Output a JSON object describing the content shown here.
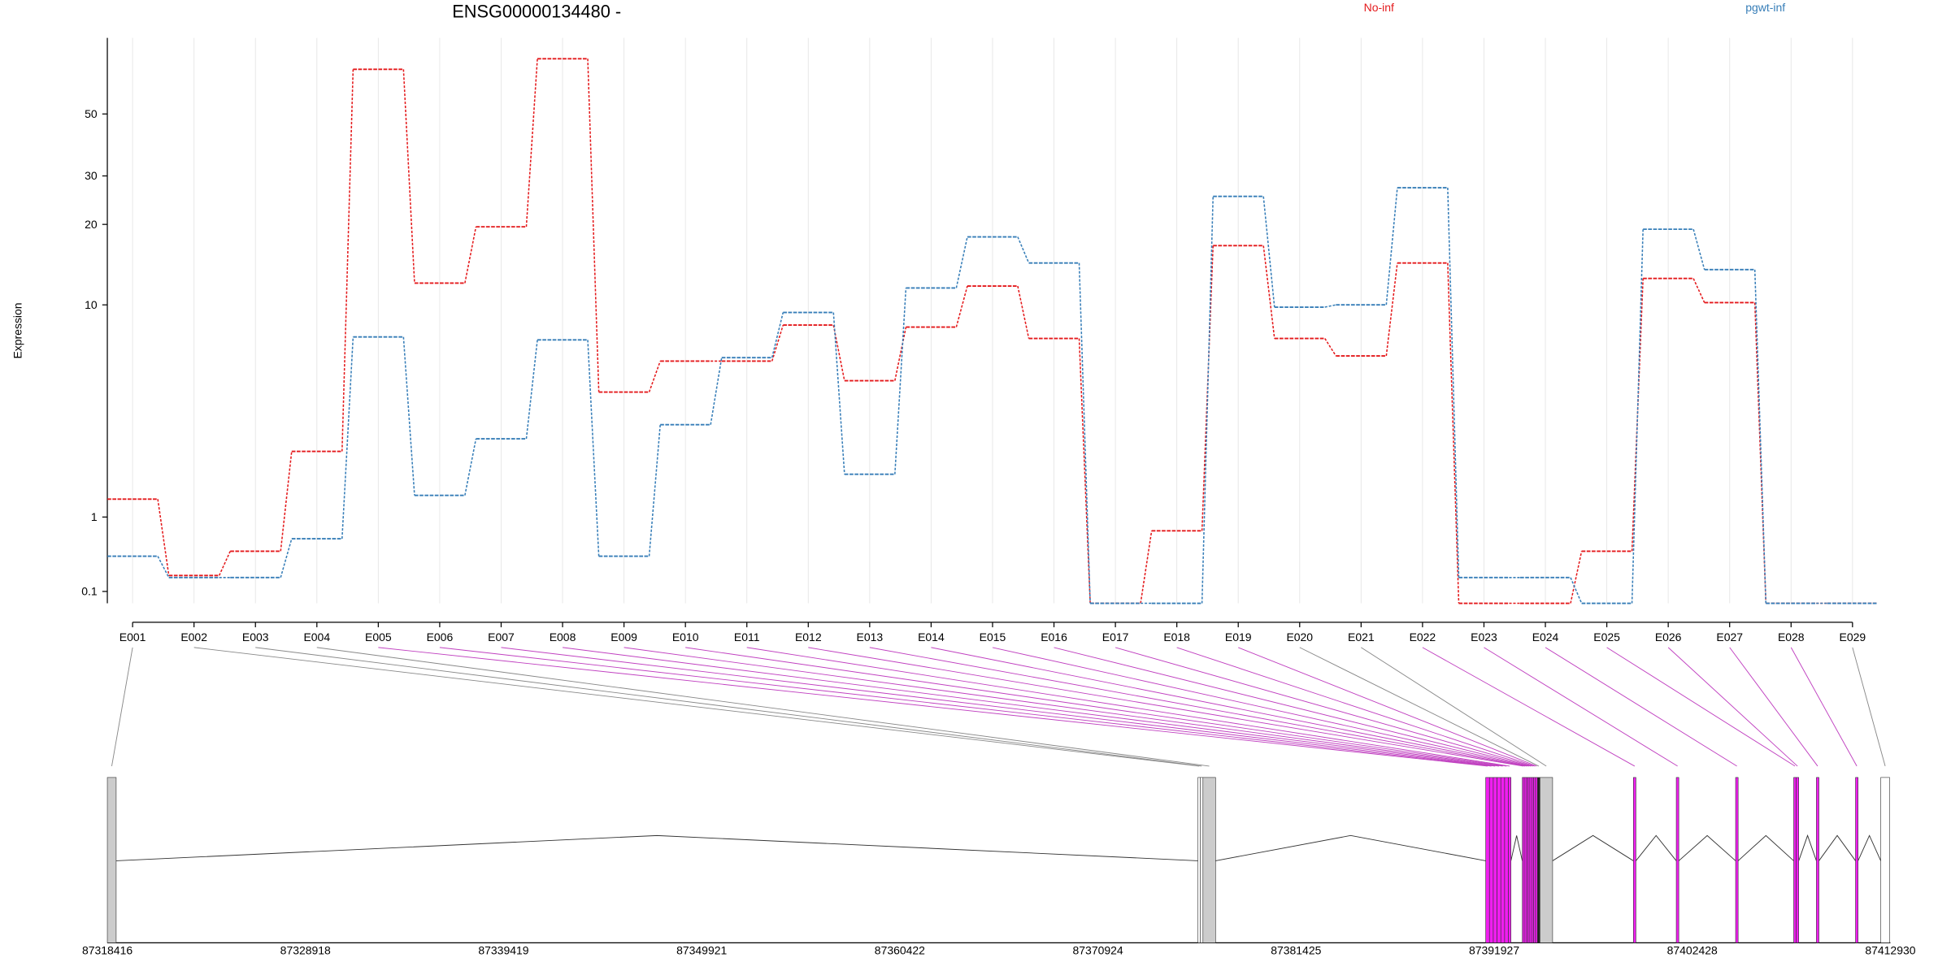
{
  "chart_data": {
    "type": "line",
    "title": "ENSG00000134480 -",
    "ylabel": "Expression",
    "categories": [
      "E001",
      "E002",
      "E003",
      "E004",
      "E005",
      "E006",
      "E007",
      "E008",
      "E009",
      "E010",
      "E011",
      "E012",
      "E013",
      "E014",
      "E015",
      "E016",
      "E017",
      "E018",
      "E019",
      "E020",
      "E021",
      "E022",
      "E023",
      "E024",
      "E025",
      "E026",
      "E027",
      "E028",
      "E029"
    ],
    "series": [
      {
        "name": "No-inf",
        "color": "#e41a1c",
        "values": [
          1.31,
          0.25,
          0.52,
          2.39,
          72,
          12.1,
          19.6,
          78.5,
          4.46,
          6.0,
          6.0,
          8.35,
          4.98,
          8.2,
          11.8,
          7.4,
          0,
          0.79,
          16.7,
          7.4,
          6.3,
          14.4,
          0,
          0,
          0.52,
          12.6,
          10.2,
          0,
          0
        ]
      },
      {
        "name": "pgwt-inf",
        "color": "#377eb8",
        "values": [
          0.46,
          0.23,
          0.23,
          0.68,
          7.5,
          1.38,
          2.75,
          7.3,
          0.46,
          3.2,
          6.2,
          9.35,
          1.82,
          11.6,
          18.0,
          14.4,
          0,
          0,
          25.3,
          9.8,
          10.0,
          27.2,
          0.23,
          0.23,
          0,
          19.2,
          13.6,
          0,
          0
        ]
      }
    ],
    "ylim": [
      0,
      93
    ],
    "yticks": [
      0.1,
      1,
      10,
      20,
      30,
      50
    ],
    "yscale": "log1p",
    "grid": true,
    "gene_model": {
      "xlim": [
        87318416,
        87412930
      ],
      "xticks": [
        87318416,
        87328918,
        87339419,
        87349921,
        87360422,
        87370924,
        87381425,
        87391927,
        87402428,
        87412930
      ],
      "bins": [
        {
          "start": 87318416,
          "end": 87318884,
          "color": "#cccccc"
        },
        {
          "start": 87376224,
          "end": 87376357,
          "color": "#ffffff"
        },
        {
          "start": 87376357,
          "end": 87376491,
          "color": "#ffffff"
        },
        {
          "start": 87376491,
          "end": 87377160,
          "color": "#cccccc"
        },
        {
          "start": 87391478,
          "end": 87391679,
          "color": "#f01ef0"
        },
        {
          "start": 87391679,
          "end": 87391880,
          "color": "#f01ef0"
        },
        {
          "start": 87391880,
          "end": 87392081,
          "color": "#f01ef0"
        },
        {
          "start": 87392081,
          "end": 87392281,
          "color": "#f01ef0"
        },
        {
          "start": 87392281,
          "end": 87392482,
          "color": "#f01ef0"
        },
        {
          "start": 87392482,
          "end": 87392683,
          "color": "#f01ef0"
        },
        {
          "start": 87392683,
          "end": 87392817,
          "color": "#f01ef0"
        },
        {
          "start": 87393419,
          "end": 87393519,
          "color": "#f01ef0"
        },
        {
          "start": 87393519,
          "end": 87393619,
          "color": "#f01ef0"
        },
        {
          "start": 87393619,
          "end": 87393720,
          "color": "#f01ef0"
        },
        {
          "start": 87393720,
          "end": 87393820,
          "color": "#f01ef0"
        },
        {
          "start": 87393820,
          "end": 87393921,
          "color": "#f01ef0"
        },
        {
          "start": 87393921,
          "end": 87394021,
          "color": "#f01ef0"
        },
        {
          "start": 87394021,
          "end": 87394122,
          "color": "#f01ef0"
        },
        {
          "start": 87394122,
          "end": 87394222,
          "color": "#f01ef0"
        },
        {
          "start": 87394222,
          "end": 87394355,
          "color": "#222222"
        },
        {
          "start": 87394355,
          "end": 87395025,
          "color": "#cccccc"
        },
        {
          "start": 87399307,
          "end": 87399441,
          "color": "#f01ef0"
        },
        {
          "start": 87401581,
          "end": 87401715,
          "color": "#f01ef0"
        },
        {
          "start": 87404726,
          "end": 87404860,
          "color": "#f01ef0"
        },
        {
          "start": 87407804,
          "end": 87407938,
          "color": "#f01ef0"
        },
        {
          "start": 87407938,
          "end": 87408072,
          "color": "#f01ef0"
        },
        {
          "start": 87409008,
          "end": 87409142,
          "color": "#f01ef0"
        },
        {
          "start": 87411082,
          "end": 87411216,
          "color": "#f01ef0"
        },
        {
          "start": 87412420,
          "end": 87412890,
          "color": "#ffffff"
        }
      ]
    }
  }
}
